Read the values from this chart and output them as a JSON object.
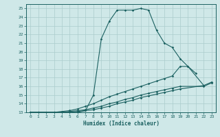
{
  "xlabel": "Humidex (Indice chaleur)",
  "background_color": "#cfe8e8",
  "grid_color": "#aacccc",
  "line_color": "#1a6060",
  "xlim": [
    -0.5,
    23.5
  ],
  "ylim": [
    13,
    25.5
  ],
  "xticks": [
    0,
    1,
    2,
    3,
    4,
    5,
    6,
    7,
    8,
    9,
    10,
    11,
    12,
    13,
    14,
    15,
    16,
    17,
    18,
    19,
    20,
    21,
    22,
    23
  ],
  "yticks": [
    13,
    14,
    15,
    16,
    17,
    18,
    19,
    20,
    21,
    22,
    23,
    24,
    25
  ],
  "line1_x": [
    0,
    1,
    2,
    3,
    4,
    5,
    6,
    7,
    8,
    9,
    10,
    11,
    12,
    13,
    14,
    15,
    16,
    17,
    18,
    19,
    20,
    21
  ],
  "line1_y": [
    13,
    13,
    13,
    13,
    13,
    13,
    13,
    13.2,
    15.0,
    21.5,
    23.5,
    24.8,
    24.8,
    24.8,
    25.0,
    24.8,
    22.5,
    21.0,
    20.5,
    19.2,
    18.3,
    17.5
  ],
  "line2_x": [
    0,
    1,
    3,
    4,
    5,
    6,
    7,
    8,
    9,
    10,
    11,
    12,
    13,
    14,
    15,
    16,
    17,
    18,
    19,
    20,
    22
  ],
  "line2_y": [
    13,
    13,
    13,
    13.1,
    13.2,
    13.4,
    13.7,
    14.0,
    14.4,
    14.8,
    15.1,
    15.4,
    15.7,
    16.0,
    16.3,
    16.6,
    16.9,
    17.2,
    18.3,
    18.3,
    16.1
  ],
  "line3_x": [
    0,
    1,
    3,
    4,
    5,
    6,
    7,
    8,
    9,
    10,
    11,
    12,
    13,
    14,
    15,
    16,
    17,
    18,
    19,
    22,
    23
  ],
  "line3_y": [
    13,
    13,
    13,
    13.0,
    13.1,
    13.2,
    13.3,
    13.5,
    13.7,
    14.0,
    14.2,
    14.5,
    14.7,
    15.0,
    15.2,
    15.4,
    15.6,
    15.8,
    16.0,
    16.0,
    16.4
  ],
  "line4_x": [
    0,
    1,
    3,
    4,
    5,
    6,
    7,
    8,
    9,
    10,
    11,
    12,
    13,
    14,
    15,
    16,
    17,
    18,
    19,
    22,
    23
  ],
  "line4_y": [
    13,
    13,
    13,
    13.0,
    13.0,
    13.1,
    13.2,
    13.3,
    13.5,
    13.7,
    14.0,
    14.2,
    14.4,
    14.7,
    14.9,
    15.1,
    15.3,
    15.5,
    15.7,
    16.1,
    16.5
  ]
}
